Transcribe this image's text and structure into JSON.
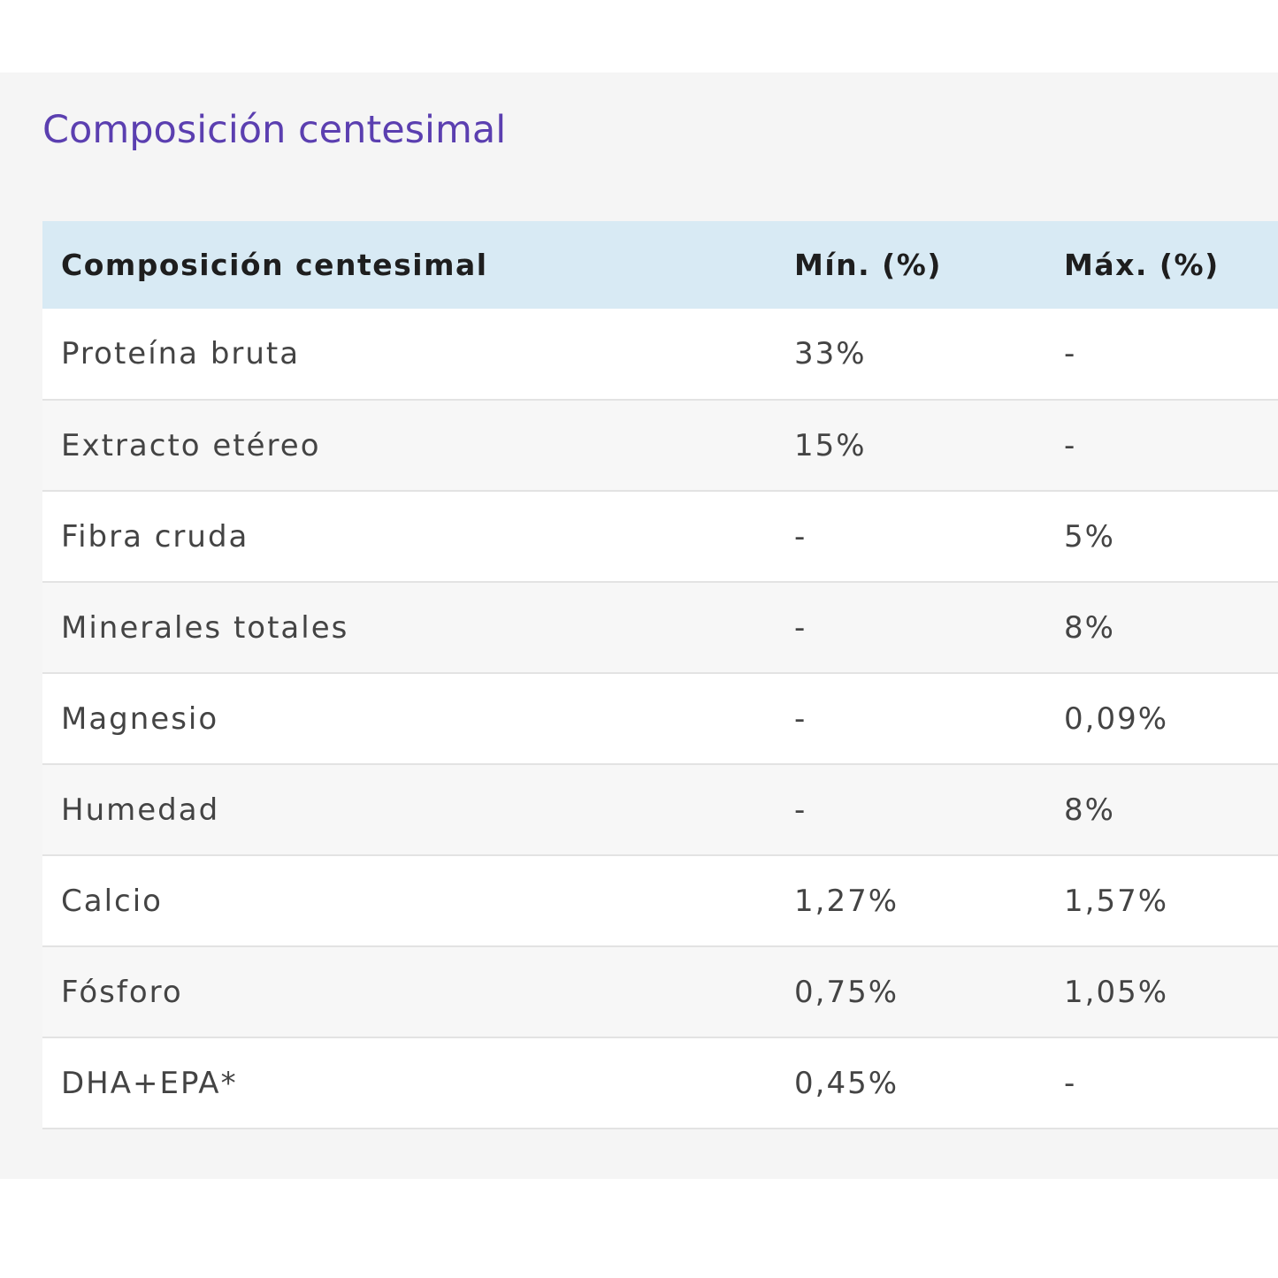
{
  "section": {
    "title": "Composición centesimal"
  },
  "table": {
    "headers": [
      "Composición centesimal",
      "Mín. (%)",
      "Máx. (%)"
    ],
    "rows": [
      [
        "Proteína bruta",
        "33%",
        "-"
      ],
      [
        "Extracto etéreo",
        "15%",
        "-"
      ],
      [
        "Fibra cruda",
        "-",
        "5%"
      ],
      [
        "Minerales totales",
        "-",
        "8%"
      ],
      [
        "Magnesio",
        "-",
        "0,09%"
      ],
      [
        "Humedad",
        "-",
        "8%"
      ],
      [
        "Calcio",
        "1,27%",
        "1,57%"
      ],
      [
        "Fósforo",
        "0,75%",
        "1,05%"
      ],
      [
        "DHA+EPA*",
        "0,45%",
        "-"
      ]
    ]
  },
  "colors": {
    "title": "#5b3fb0",
    "header_bg": "#d8eaf4",
    "panel_bg": "#f5f5f5"
  }
}
